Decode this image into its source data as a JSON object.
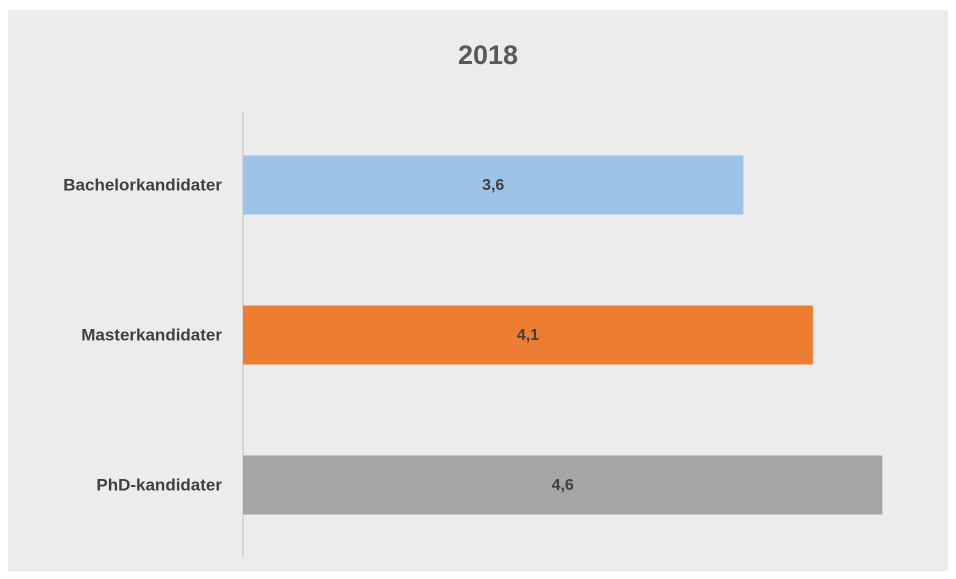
{
  "chart_data": {
    "type": "barh",
    "title": "2018",
    "categories": [
      "Bachelorkandidater",
      "Masterkandidater",
      "PhD-kandidater"
    ],
    "values": [
      3.6,
      4.1,
      4.6
    ],
    "value_labels": [
      "3,6",
      "4,1",
      "4,6"
    ],
    "colors": [
      "#9dc3e6",
      "#ed7d31",
      "#a5a5a5"
    ],
    "xlim": [
      0,
      5
    ]
  }
}
